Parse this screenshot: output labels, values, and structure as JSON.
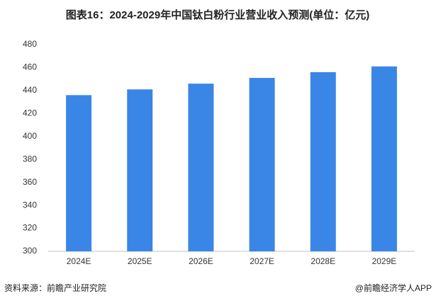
{
  "chart_data": {
    "type": "bar",
    "title": "图表16：2024-2029年中国钛白粉行业营业收入预测(单位：亿元)",
    "categories": [
      "2024E",
      "2025E",
      "2026E",
      "2027E",
      "2028E",
      "2029E"
    ],
    "values": [
      436,
      441,
      446,
      451,
      456,
      461
    ],
    "color": "#3a86e6",
    "ylim": [
      300,
      480
    ],
    "yticks": [
      300,
      320,
      340,
      360,
      380,
      400,
      420,
      440,
      460,
      480
    ],
    "grid": false,
    "source": "资料来源：前瞻产业研究院",
    "credit": "@前瞻经济学人APP"
  }
}
